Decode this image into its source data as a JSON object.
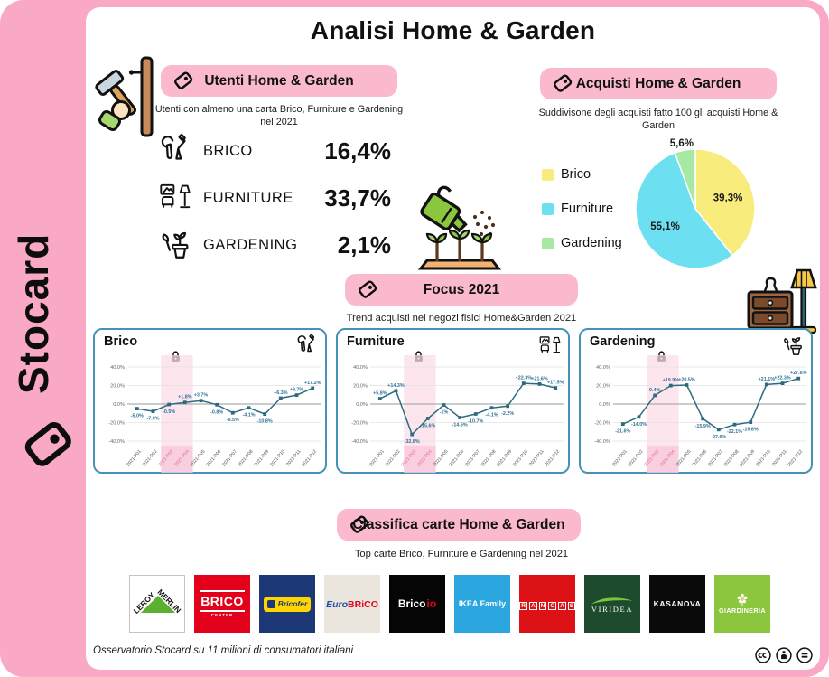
{
  "brand": {
    "name": "Stocard"
  },
  "header": {
    "title": "Analisi Home & Garden"
  },
  "colors": {
    "frame_pink": "#F9A8C5",
    "badge_pink": "#FBB9CE",
    "band_pink": "#FBDCE7",
    "card_border": "#4592B8",
    "line_teal": "#2C6B7F",
    "value_label_blue": "#2E7396",
    "pie_brico": "#F8ED7C",
    "pie_furniture": "#6CE0F1",
    "pie_gardening": "#A7E8A3"
  },
  "sections": {
    "utenti": {
      "badge": "Utenti Home & Garden",
      "subtitle": "Utenti con almeno una carta Brico, Furniture e Gardening nel 2021",
      "stats": [
        {
          "icon": "tools-icon",
          "label": "BRICO",
          "value": "16,4%"
        },
        {
          "icon": "furniture-icon",
          "label": "FURNITURE",
          "value": "33,7%"
        },
        {
          "icon": "gardening-icon",
          "label": "GARDENING",
          "value": "2,1%"
        }
      ]
    },
    "acquisti": {
      "badge": "Acquisti Home & Garden",
      "subtitle": "Suddivisone degli acquisti fatto 100 gli acquisti Home & Garden"
    },
    "focus": {
      "badge": "Focus 2021",
      "subtitle": "Trend acquisti nei negozi fisici Home&Garden 2021"
    },
    "classifica": {
      "badge": "Classifica carte Home & Garden",
      "subtitle": "Top carte Brico, Furniture e Gardening nel 2021",
      "cards": [
        {
          "id": "leroy-merlin",
          "label": "LEROY",
          "label2": "MERLIN",
          "bg": "#FFFFFF",
          "fg": "#111111",
          "accent": "#59B031"
        },
        {
          "id": "brico-center",
          "label": "BRICO",
          "label2": "CENTER",
          "bg": "#E2001A",
          "fg": "#FFFFFF"
        },
        {
          "id": "bricofer",
          "label": "Bricofer",
          "bg": "#1D3876",
          "fg": "#1D3876",
          "accent": "#FFD500"
        },
        {
          "id": "eurobrico",
          "label": "Euro",
          "label2": "BRiCO",
          "bg": "#EAE6DE",
          "fg": "#1E4FA3",
          "accent": "#E2001A"
        },
        {
          "id": "brico-io",
          "label": "Brico",
          "label2": "io",
          "bg": "#050505",
          "fg": "#FFFFFF",
          "accent": "#E2001A"
        },
        {
          "id": "ikea-family",
          "label": "IKEA Family",
          "bg": "#2BA6DE",
          "fg": "#FFFFFF"
        },
        {
          "id": "grancasa",
          "label": "GRANCASA",
          "bg": "#DD1217",
          "fg": "#FFFFFF"
        },
        {
          "id": "viridea",
          "label": "VIRIDEA",
          "bg": "#1E4B2D",
          "fg": "#FFFFFF",
          "accent": "#7DC242"
        },
        {
          "id": "kasanova",
          "label": "KASANOVA",
          "bg": "#0A0A0A",
          "fg": "#FFFFFF"
        },
        {
          "id": "giardineria",
          "label": "GIARDINERIA",
          "bg": "#8CC63F",
          "fg": "#FFFFFF"
        }
      ]
    }
  },
  "footer": {
    "note": "Osservatorio Stocard su 11 milioni di consumatori italiani",
    "license": [
      "cc-icon",
      "cc-by-icon",
      "cc-nd-icon"
    ]
  },
  "chart_data": [
    {
      "type": "pie",
      "title": "Acquisti Home & Garden",
      "categories": [
        "Brico",
        "Furniture",
        "Gardening"
      ],
      "values": [
        39.3,
        55.1,
        5.6
      ],
      "labels": [
        "39,3%",
        "55,1%",
        "5,6%"
      ],
      "colors": [
        "#F8ED7C",
        "#6CE0F1",
        "#A7E8A3"
      ],
      "legend_position": "left"
    },
    {
      "type": "line",
      "title": "Brico",
      "corner_icon": "tools-icon",
      "x": [
        "2021-P01",
        "2021-P02",
        "2021-P03",
        "2021-P04",
        "2021-P05",
        "2021-P06",
        "2021-P07",
        "2021-P08",
        "2021-P09",
        "2021-P10",
        "2021-P11",
        "2021-P12"
      ],
      "values": [
        -5.0,
        -7.9,
        -0.5,
        1.8,
        3.7,
        -0.8,
        -9.5,
        -4.1,
        -10.8,
        6.3,
        9.7,
        17.2
      ],
      "labels": [
        "-5.0%",
        "-7.9%",
        "-0.5%",
        "+1.8%",
        "+3.7%",
        "-0.8%",
        "-9.5%",
        "-4.1%",
        "-10.8%",
        "+6.3%",
        "+9.7%",
        "+17.2%"
      ],
      "ylim": [
        -40,
        40
      ],
      "yticks": [
        "40.0%",
        "20.0%",
        "0.0%",
        "-20.0%",
        "-40.0%"
      ],
      "highlight_band": [
        "2021-P03",
        "2021-P04"
      ],
      "grid": true
    },
    {
      "type": "line",
      "title": "Furniture",
      "corner_icon": "furniture-icon",
      "x": [
        "2021-P01",
        "2021-P02",
        "2021-P03",
        "2021-P04",
        "2021-P05",
        "2021-P06",
        "2021-P07",
        "2021-P08",
        "2021-P09",
        "2021-P10",
        "2021-P11",
        "2021-P12"
      ],
      "values": [
        5.8,
        14.3,
        -32.8,
        -15.6,
        -1,
        -14.6,
        -10.7,
        -4.1,
        -2.2,
        22.3,
        21.6,
        17.5
      ],
      "labels": [
        "+5.8%",
        "+14.3%",
        "-32.8%",
        "-15.6%",
        "-1%",
        "-14.6%",
        "-10.7%",
        "-4.1%",
        "-2.2%",
        "+22.3%",
        "+21.6%",
        "+17.5%"
      ],
      "ylim": [
        -40,
        40
      ],
      "yticks": [
        "40.0%",
        "20.0%",
        "0.0%",
        "-20.0%",
        "-40.0%"
      ],
      "highlight_band": [
        "2021-P03",
        "2021-P04"
      ],
      "grid": true
    },
    {
      "type": "line",
      "title": "Gardening",
      "corner_icon": "gardening-icon",
      "x": [
        "2021-P01",
        "2021-P02",
        "2021-P03",
        "2021-P04",
        "2021-P05",
        "2021-P06",
        "2021-P07",
        "2021-P08",
        "2021-P09",
        "2021-P10",
        "2021-P11",
        "2021-P12"
      ],
      "values": [
        -21.6,
        -14.0,
        9.4,
        19.9,
        20.5,
        -15.9,
        -27.6,
        -22.1,
        -19.6,
        21.1,
        22.3,
        27.6
      ],
      "labels": [
        "-21.6%",
        "-14.0%",
        "9.4%",
        "+19.9%",
        "+20.5%",
        "-15.9%",
        "-27.6%",
        "-22.1%",
        "-19.6%",
        "+21.1%",
        "+22.3%",
        "+27.6%"
      ],
      "ylim": [
        -40,
        40
      ],
      "yticks": [
        "40.0%",
        "20.0%",
        "0.0%",
        "-20.0%",
        "-40.0%"
      ],
      "highlight_band": [
        "2021-P03",
        "2021-P04"
      ],
      "grid": true
    }
  ]
}
